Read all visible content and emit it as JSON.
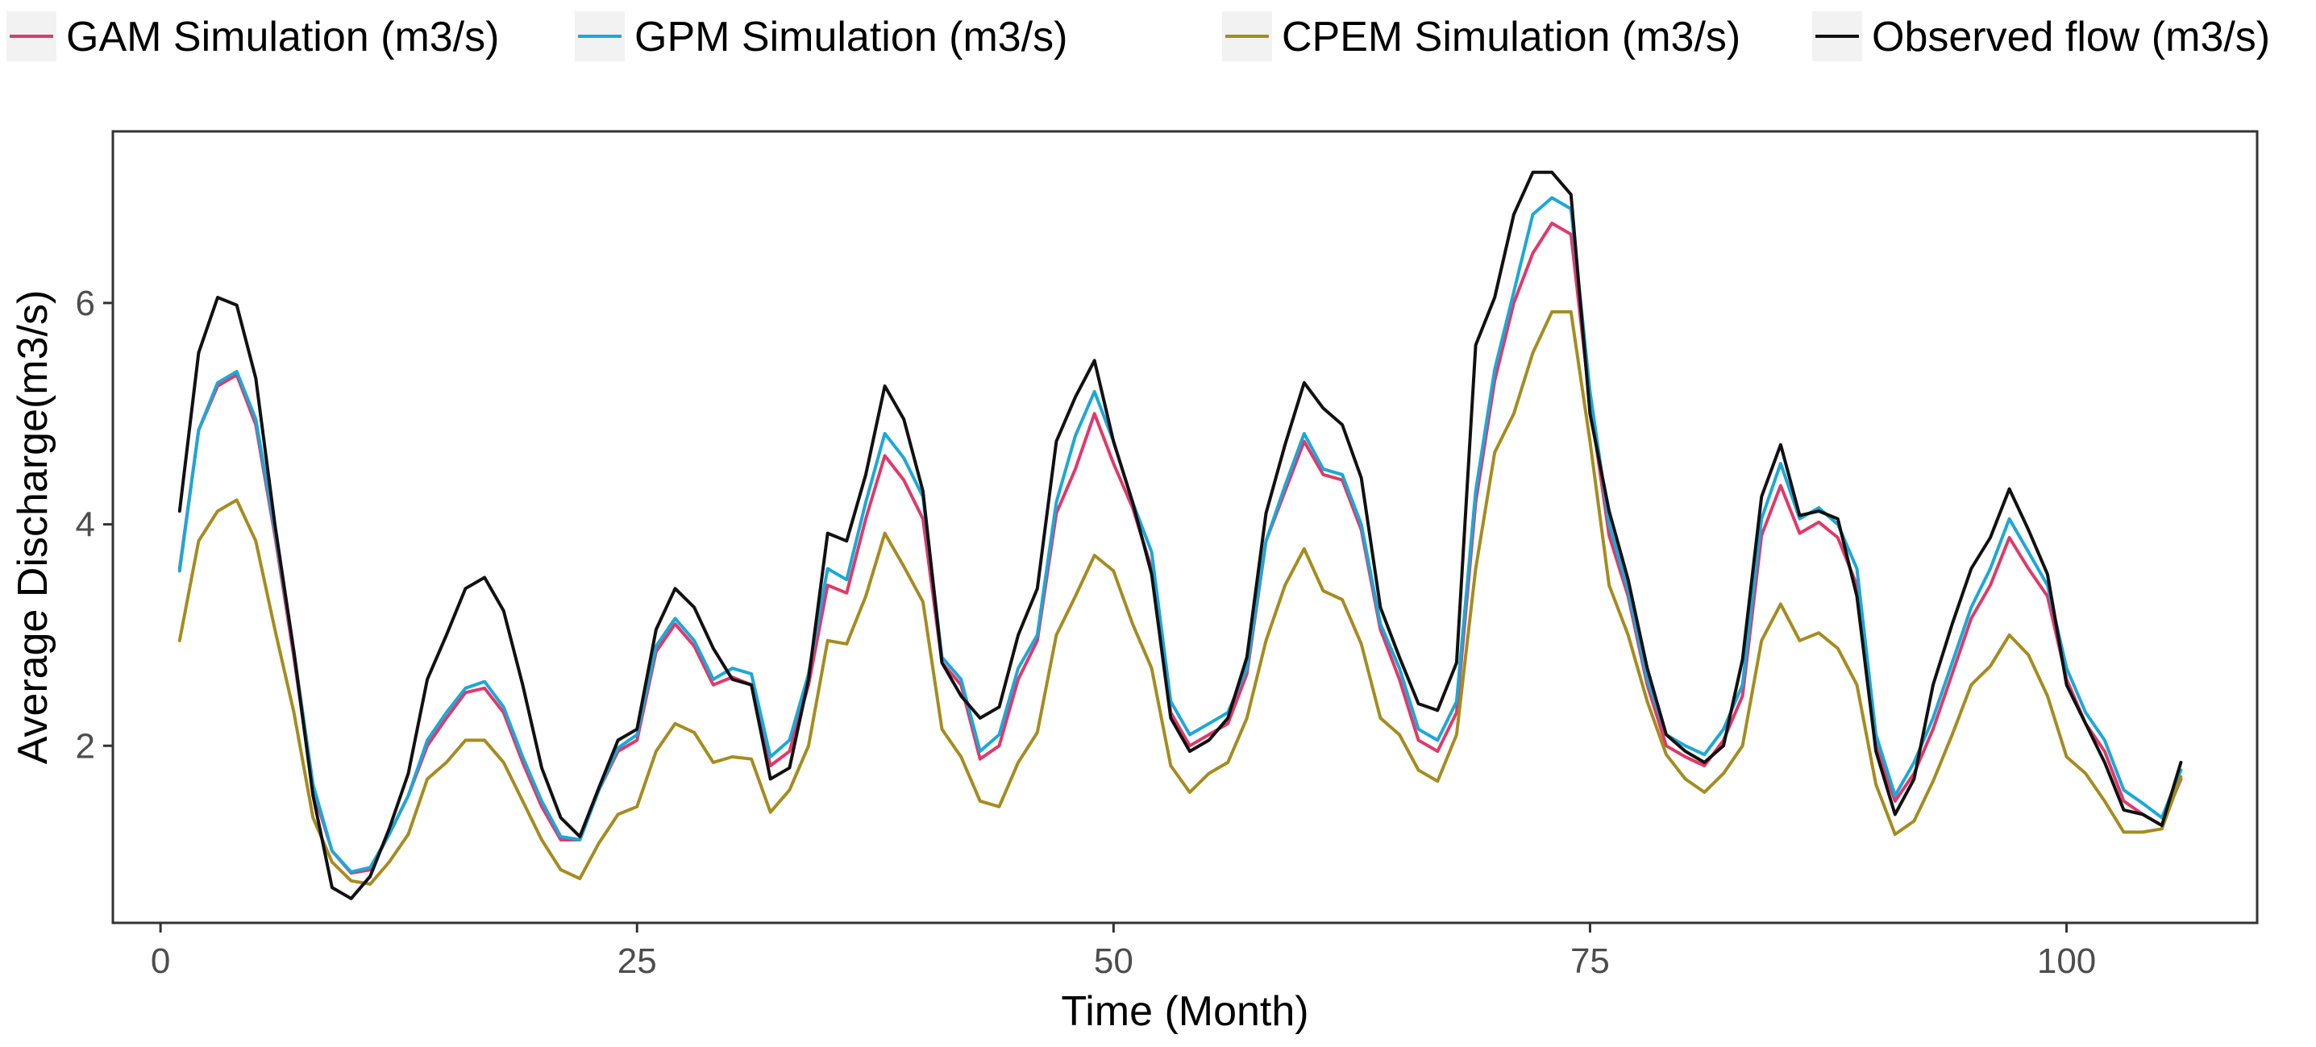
{
  "chart_data": {
    "type": "line",
    "title": "",
    "xlabel": "Time (Month)",
    "ylabel": "Average Discharge(m3/s)",
    "xlim": [
      -2.5,
      110
    ],
    "ylim": [
      0.4,
      7.55
    ],
    "xticks": [
      0,
      25,
      50,
      75,
      100
    ],
    "yticks": [
      2,
      4,
      6
    ],
    "grid": false,
    "legend_position": "top",
    "x": [
      1,
      2,
      3,
      4,
      5,
      6,
      7,
      8,
      9,
      10,
      11,
      12,
      13,
      14,
      15,
      16,
      17,
      18,
      19,
      20,
      21,
      22,
      23,
      24,
      25,
      26,
      27,
      28,
      29,
      30,
      31,
      32,
      33,
      34,
      35,
      36,
      37,
      38,
      39,
      40,
      41,
      42,
      43,
      44,
      45,
      46,
      47,
      48,
      49,
      50,
      51,
      52,
      53,
      54,
      55,
      56,
      57,
      58,
      59,
      60,
      61,
      62,
      63,
      64,
      65,
      66,
      67,
      68,
      69,
      70,
      71,
      72,
      73,
      74,
      75,
      76,
      77,
      78,
      79,
      80,
      81,
      82,
      83,
      84,
      85,
      86,
      87,
      88,
      89,
      90,
      91,
      92,
      93,
      94,
      95,
      96,
      97,
      98,
      99,
      100,
      101,
      102,
      103,
      104,
      105,
      106
    ],
    "series": [
      {
        "name": "GAM Simulation (m3/s)",
        "color": "#e0396a",
        "values": [
          3.6,
          4.85,
          5.25,
          5.35,
          4.9,
          3.9,
          2.8,
          1.6,
          1.05,
          0.85,
          0.88,
          1.2,
          1.55,
          2.0,
          2.25,
          2.48,
          2.52,
          2.3,
          1.85,
          1.45,
          1.15,
          1.15,
          1.6,
          1.95,
          2.05,
          2.85,
          3.1,
          2.9,
          2.55,
          2.62,
          2.55,
          1.82,
          1.95,
          2.55,
          3.45,
          3.38,
          4.05,
          4.62,
          4.4,
          4.05,
          2.75,
          2.55,
          1.88,
          2.0,
          2.6,
          2.95,
          4.1,
          4.5,
          5.0,
          4.55,
          4.15,
          3.6,
          2.3,
          2.0,
          2.1,
          2.2,
          2.65,
          3.85,
          4.3,
          4.75,
          4.45,
          4.4,
          3.95,
          3.05,
          2.6,
          2.05,
          1.95,
          2.3,
          4.2,
          5.3,
          6.0,
          6.45,
          6.72,
          6.62,
          5.1,
          3.9,
          3.35,
          2.55,
          2.0,
          1.9,
          1.82,
          2.05,
          2.45,
          3.9,
          4.35,
          3.92,
          4.02,
          3.88,
          3.45,
          2.0,
          1.5,
          1.75,
          2.15,
          2.65,
          3.15,
          3.45,
          3.88,
          3.6,
          3.35,
          2.6,
          2.2,
          1.95,
          1.5,
          1.38,
          1.28,
          1.7
        ]
      },
      {
        "name": "GPM Simulation (m3/s)",
        "color": "#1ba8d8",
        "values": [
          3.58,
          4.85,
          5.28,
          5.38,
          4.95,
          3.95,
          2.85,
          1.65,
          1.05,
          0.86,
          0.9,
          1.2,
          1.55,
          2.05,
          2.3,
          2.52,
          2.58,
          2.35,
          1.9,
          1.5,
          1.18,
          1.15,
          1.6,
          1.98,
          2.1,
          2.9,
          3.15,
          2.95,
          2.6,
          2.7,
          2.65,
          1.9,
          2.05,
          2.65,
          3.6,
          3.5,
          4.2,
          4.82,
          4.6,
          4.25,
          2.8,
          2.6,
          1.95,
          2.1,
          2.7,
          3.0,
          4.2,
          4.8,
          5.2,
          4.75,
          4.2,
          3.75,
          2.4,
          2.1,
          2.2,
          2.3,
          2.7,
          3.85,
          4.35,
          4.82,
          4.5,
          4.45,
          4.0,
          3.1,
          2.7,
          2.15,
          2.05,
          2.4,
          4.3,
          5.4,
          6.1,
          6.8,
          6.95,
          6.85,
          5.2,
          4.0,
          3.4,
          2.6,
          2.1,
          2.0,
          1.92,
          2.15,
          2.55,
          4.05,
          4.55,
          4.05,
          4.15,
          4.0,
          3.6,
          2.1,
          1.55,
          1.85,
          2.25,
          2.75,
          3.25,
          3.6,
          4.05,
          3.75,
          3.45,
          2.7,
          2.3,
          2.05,
          1.6,
          1.48,
          1.35,
          1.78
        ]
      },
      {
        "name": "CPEM Simulation (m3/s)",
        "color": "#a58c1e",
        "values": [
          2.95,
          3.85,
          4.12,
          4.22,
          3.85,
          3.05,
          2.3,
          1.35,
          0.95,
          0.78,
          0.75,
          0.95,
          1.2,
          1.7,
          1.85,
          2.05,
          2.05,
          1.85,
          1.5,
          1.15,
          0.88,
          0.8,
          1.12,
          1.38,
          1.45,
          1.95,
          2.2,
          2.12,
          1.85,
          1.9,
          1.88,
          1.4,
          1.6,
          2.0,
          2.95,
          2.92,
          3.35,
          3.92,
          3.62,
          3.3,
          2.15,
          1.9,
          1.5,
          1.45,
          1.85,
          2.12,
          3.0,
          3.35,
          3.72,
          3.58,
          3.1,
          2.7,
          1.82,
          1.58,
          1.75,
          1.85,
          2.25,
          2.95,
          3.45,
          3.78,
          3.4,
          3.32,
          2.92,
          2.25,
          2.1,
          1.78,
          1.68,
          2.1,
          3.6,
          4.65,
          5.0,
          5.55,
          5.92,
          5.92,
          4.75,
          3.45,
          3.0,
          2.4,
          1.92,
          1.7,
          1.58,
          1.75,
          2.0,
          2.95,
          3.28,
          2.95,
          3.02,
          2.88,
          2.55,
          1.65,
          1.2,
          1.32,
          1.68,
          2.1,
          2.55,
          2.72,
          3.0,
          2.82,
          2.45,
          1.9,
          1.75,
          1.5,
          1.22,
          1.22,
          1.25,
          1.72
        ]
      },
      {
        "name": "Observed flow (m3/s)",
        "color": "#111111",
        "values": [
          4.12,
          5.55,
          6.05,
          5.98,
          5.32,
          4.0,
          2.85,
          1.55,
          0.72,
          0.62,
          0.82,
          1.25,
          1.75,
          2.6,
          3.0,
          3.42,
          3.52,
          3.22,
          2.55,
          1.8,
          1.35,
          1.18,
          1.62,
          2.05,
          2.15,
          3.05,
          3.42,
          3.25,
          2.88,
          2.6,
          2.55,
          1.7,
          1.8,
          2.6,
          3.92,
          3.85,
          4.45,
          5.25,
          4.95,
          4.3,
          2.75,
          2.45,
          2.25,
          2.35,
          3.0,
          3.42,
          4.75,
          5.15,
          5.48,
          4.75,
          4.2,
          3.55,
          2.25,
          1.95,
          2.05,
          2.25,
          2.8,
          4.1,
          4.72,
          5.28,
          5.05,
          4.9,
          4.42,
          3.25,
          2.8,
          2.38,
          2.32,
          2.75,
          5.62,
          6.05,
          6.8,
          7.18,
          7.18,
          6.98,
          5.0,
          4.12,
          3.5,
          2.7,
          2.1,
          1.95,
          1.85,
          2.0,
          2.78,
          4.25,
          4.72,
          4.08,
          4.12,
          4.05,
          3.35,
          1.95,
          1.38,
          1.7,
          2.55,
          3.1,
          3.6,
          3.88,
          4.32,
          3.95,
          3.55,
          2.55,
          2.2,
          1.85,
          1.42,
          1.38,
          1.28,
          1.85
        ]
      }
    ]
  }
}
